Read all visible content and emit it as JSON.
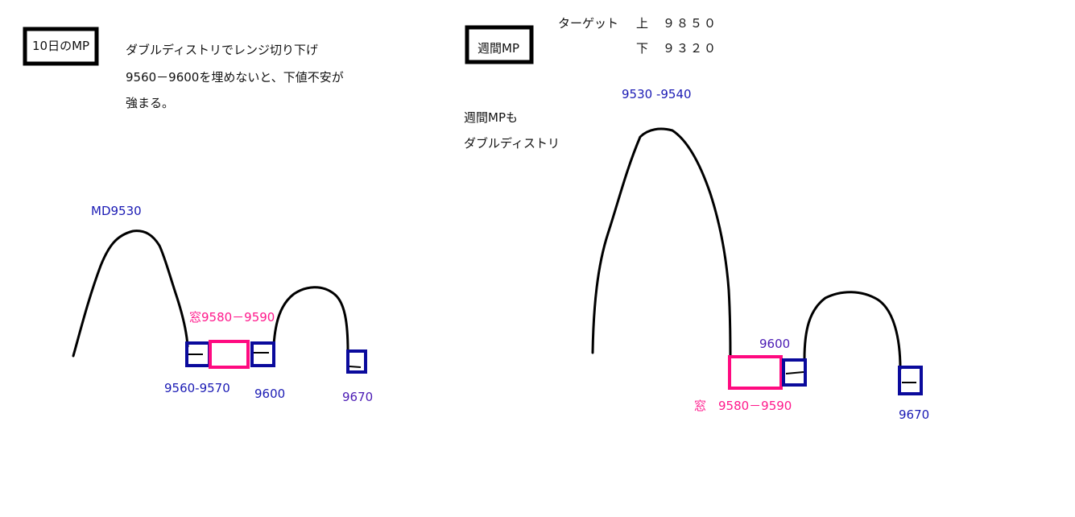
{
  "left": {
    "title": "10日のMP",
    "notes": [
      "ダブルディストリでレンジ切り下げ",
      "9560－9600を埋めないと、下値不安が",
      "強まる。"
    ],
    "md_label": "MD9530",
    "window_label": "窓9580－9590",
    "low_label": "9560-9570",
    "mid_label": "9600",
    "high_label": "9670"
  },
  "right": {
    "title": "週間MP",
    "target_label": "ターゲット",
    "upper_label": "上",
    "upper_value": "９８５０",
    "lower_label": "下",
    "lower_value": "９３２０",
    "notes": [
      "週間MPも",
      "ダブルディストリ"
    ],
    "peak_label": "9530 -9540",
    "mid_label": "9600",
    "window_label": "窓　9580－9590",
    "high_label": "9670"
  },
  "colors": {
    "blue": "#1a1ab4",
    "pink": "#ff1a8c",
    "box_blue": "#0a0a9c",
    "box_pink": "#ff0a80"
  }
}
